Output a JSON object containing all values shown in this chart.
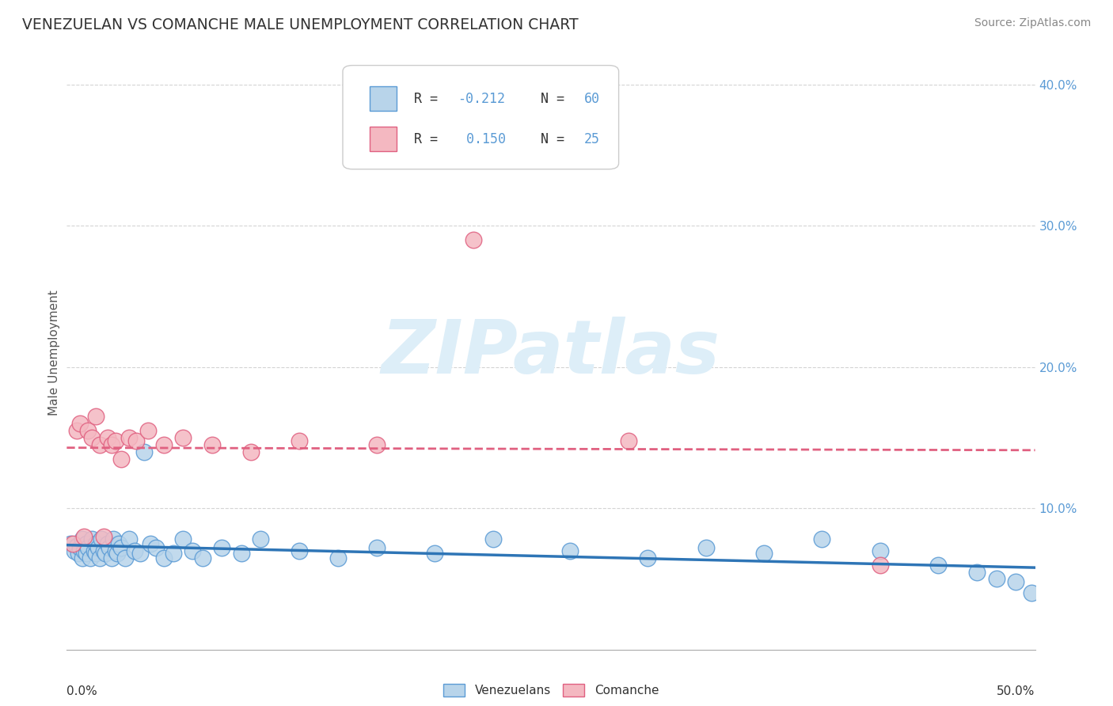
{
  "title": "VENEZUELAN VS COMANCHE MALE UNEMPLOYMENT CORRELATION CHART",
  "source": "Source: ZipAtlas.com",
  "ylabel": "Male Unemployment",
  "legend_labels": [
    "Venezuelans",
    "Comanche"
  ],
  "blue_fill": "#b8d4ea",
  "blue_edge": "#5b9bd5",
  "pink_fill": "#f4b8c1",
  "pink_edge": "#e06080",
  "blue_line_color": "#2e75b6",
  "pink_line_color": "#e07080",
  "watermark_color": "#ddeef8",
  "xlim": [
    0.0,
    0.5
  ],
  "ylim": [
    0.0,
    0.42
  ],
  "yticks": [
    0.1,
    0.2,
    0.3,
    0.4
  ],
  "ytick_labels": [
    "10.0%",
    "20.0%",
    "30.0%",
    "40.0%"
  ],
  "venezuelan_x": [
    0.002,
    0.004,
    0.005,
    0.006,
    0.007,
    0.008,
    0.008,
    0.009,
    0.01,
    0.01,
    0.011,
    0.012,
    0.013,
    0.014,
    0.015,
    0.015,
    0.016,
    0.017,
    0.018,
    0.019,
    0.02,
    0.021,
    0.022,
    0.023,
    0.024,
    0.025,
    0.026,
    0.027,
    0.028,
    0.03,
    0.032,
    0.035,
    0.038,
    0.04,
    0.043,
    0.046,
    0.05,
    0.055,
    0.06,
    0.065,
    0.07,
    0.08,
    0.09,
    0.1,
    0.12,
    0.14,
    0.16,
    0.19,
    0.22,
    0.26,
    0.3,
    0.33,
    0.36,
    0.39,
    0.42,
    0.45,
    0.47,
    0.48,
    0.49,
    0.498
  ],
  "venezuelan_y": [
    0.075,
    0.07,
    0.073,
    0.068,
    0.072,
    0.065,
    0.078,
    0.07,
    0.068,
    0.075,
    0.072,
    0.065,
    0.078,
    0.07,
    0.068,
    0.075,
    0.072,
    0.065,
    0.078,
    0.07,
    0.068,
    0.075,
    0.072,
    0.065,
    0.078,
    0.07,
    0.068,
    0.075,
    0.072,
    0.065,
    0.078,
    0.07,
    0.068,
    0.14,
    0.075,
    0.072,
    0.065,
    0.068,
    0.078,
    0.07,
    0.065,
    0.072,
    0.068,
    0.078,
    0.07,
    0.065,
    0.072,
    0.068,
    0.078,
    0.07,
    0.065,
    0.072,
    0.068,
    0.078,
    0.07,
    0.06,
    0.055,
    0.05,
    0.048,
    0.04
  ],
  "comanche_x": [
    0.003,
    0.005,
    0.007,
    0.009,
    0.011,
    0.013,
    0.015,
    0.017,
    0.019,
    0.021,
    0.023,
    0.025,
    0.028,
    0.032,
    0.036,
    0.042,
    0.05,
    0.06,
    0.075,
    0.095,
    0.12,
    0.16,
    0.21,
    0.29,
    0.42
  ],
  "comanche_y": [
    0.075,
    0.155,
    0.16,
    0.08,
    0.155,
    0.15,
    0.165,
    0.145,
    0.08,
    0.15,
    0.145,
    0.148,
    0.135,
    0.15,
    0.148,
    0.155,
    0.145,
    0.15,
    0.145,
    0.14,
    0.148,
    0.145,
    0.29,
    0.148,
    0.06
  ],
  "background_color": "#ffffff",
  "grid_color": "#d0d0d0",
  "tick_color": "#5b9bd5"
}
